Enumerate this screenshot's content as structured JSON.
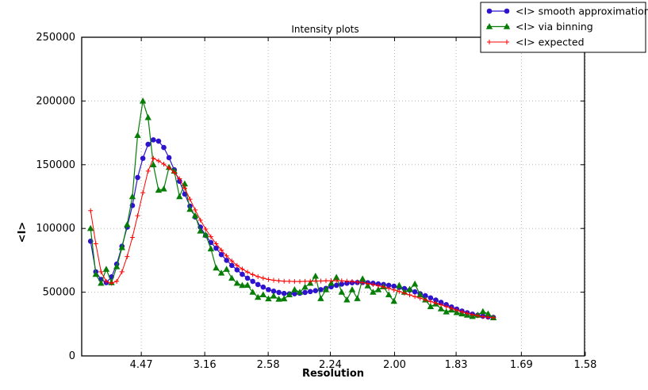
{
  "window": {
    "background": "#ffffff"
  },
  "chart_data": {
    "type": "line",
    "title": "Intensity plots",
    "xlabel": "Resolution",
    "ylabel": "<I>",
    "grid": true,
    "grid_style": "dotted",
    "grid_color": "#b8b8b8",
    "legend_position": "upper right",
    "x_axis": {
      "tick_labels": [
        "4.47",
        "3.16",
        "2.58",
        "2.24",
        "2.00",
        "1.83",
        "1.69",
        "1.58"
      ],
      "scale": "linear in 1/d^2",
      "range_inv_d2": [
        0.003,
        0.4
      ]
    },
    "y_axis": {
      "tick_labels": [
        "0",
        "50000",
        "100000",
        "150000",
        "200000",
        "250000"
      ],
      "ticks": [
        0,
        50000,
        100000,
        150000,
        200000,
        250000
      ],
      "range": [
        0,
        250000
      ]
    },
    "x_start_inv_d2": 0.01,
    "x_step_inv_d2": 0.00413,
    "series": [
      {
        "name": "<I> smooth approximation",
        "color": "#2d13cd",
        "marker": "circle",
        "values": [
          90000,
          66000,
          60000,
          57500,
          62000,
          72000,
          86000,
          101000,
          118000,
          140000,
          155000,
          166000,
          169500,
          168500,
          163500,
          155500,
          146000,
          137000,
          127000,
          117500,
          109000,
          101000,
          94500,
          89000,
          84500,
          79500,
          75000,
          71000,
          67500,
          64000,
          61000,
          58500,
          56000,
          54000,
          52000,
          50800,
          49800,
          49000,
          48700,
          48800,
          49200,
          49800,
          50500,
          51200,
          52000,
          53000,
          54200,
          55400,
          56300,
          57000,
          57400,
          57600,
          57600,
          57400,
          57000,
          56500,
          56000,
          55400,
          54700,
          53800,
          52800,
          51600,
          50300,
          48800,
          47200,
          45500,
          43800,
          42000,
          40200,
          38400,
          36700,
          35200,
          33900,
          32800,
          31900,
          31200,
          30600,
          30200
        ]
      },
      {
        "name": "<I> via binning",
        "color": "#067d06",
        "marker": "triangle",
        "values": [
          100000,
          64000,
          57000,
          68000,
          57500,
          70000,
          85000,
          103000,
          125000,
          173000,
          200000,
          187000,
          150000,
          130000,
          131000,
          148000,
          145000,
          125000,
          135000,
          115000,
          110000,
          98000,
          95000,
          84000,
          69000,
          65000,
          68000,
          61000,
          57000,
          55300,
          55500,
          50000,
          46000,
          48000,
          44800,
          47000,
          44500,
          44800,
          48000,
          52000,
          50000,
          54000,
          57000,
          62600,
          45000,
          52000,
          57000,
          61600,
          50000,
          44000,
          52000,
          45000,
          60500,
          55000,
          50000,
          52000,
          54300,
          48000,
          42900,
          55300,
          50000,
          52200,
          56400,
          48000,
          44000,
          38700,
          40800,
          37000,
          34600,
          36000,
          34000,
          33000,
          32000,
          31000,
          32000,
          34800,
          33000,
          30000
        ]
      },
      {
        "name": "<I> expected",
        "color": "#ff0000",
        "marker": "plus",
        "values": [
          114000,
          88000,
          66000,
          58500,
          57000,
          58500,
          66000,
          78000,
          93000,
          110000,
          128000,
          145000,
          155000,
          153000,
          150500,
          147500,
          144000,
          139000,
          131500,
          123000,
          114500,
          106500,
          99500,
          93500,
          88000,
          83000,
          78500,
          74500,
          71000,
          68200,
          65800,
          63800,
          62200,
          61000,
          60000,
          59400,
          58900,
          58600,
          58500,
          58400,
          58400,
          58500,
          58600,
          58700,
          58800,
          58900,
          59000,
          59000,
          58900,
          58700,
          58400,
          58000,
          57500,
          56800,
          56000,
          55100,
          54100,
          53000,
          51800,
          50500,
          49200,
          47900,
          46600,
          45300,
          44000,
          42700,
          41400,
          40100,
          38700,
          37300,
          35900,
          34600,
          33400,
          32400,
          31500,
          30800,
          30300,
          30000
        ]
      }
    ]
  }
}
